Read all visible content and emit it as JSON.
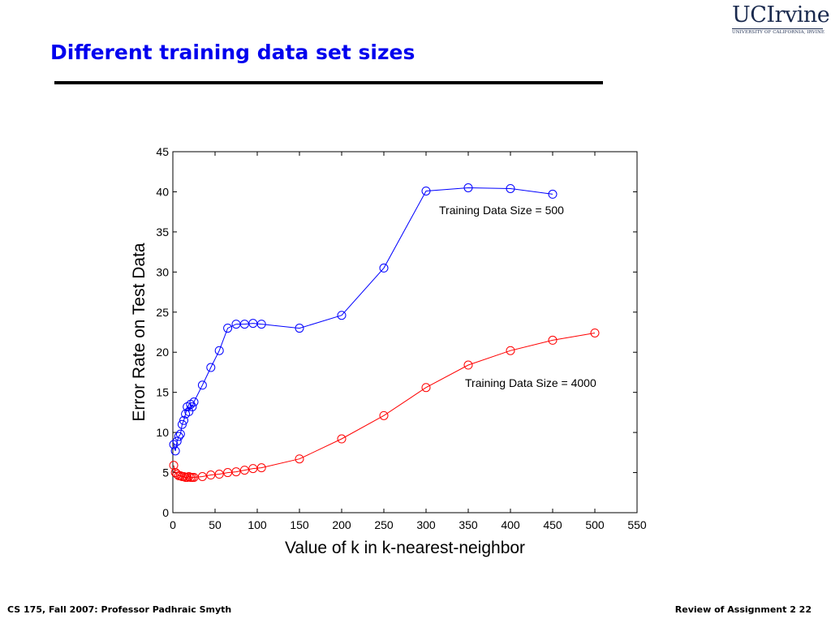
{
  "slide": {
    "title": "Different training data set sizes",
    "footer_left": "CS 175, Fall 2007: Professor Padhraic Smyth",
    "footer_right": "Review of Assignment 2 22"
  },
  "logo": {
    "main": "UCIrvine",
    "sub": "UNIVERSITY OF CALIFORNIA, IRVINE"
  },
  "chart_data": {
    "type": "line",
    "xlabel": "Value of k in k-nearest-neighbor",
    "ylabel": "Error Rate on Test Data",
    "xlim": [
      0,
      550
    ],
    "ylim": [
      0,
      45
    ],
    "xticks": [
      "0",
      "50",
      "100",
      "150",
      "200",
      "250",
      "300",
      "350",
      "400",
      "450",
      "500",
      "550"
    ],
    "yticks": [
      "0",
      "5",
      "10",
      "15",
      "20",
      "25",
      "30",
      "35",
      "40",
      "45"
    ],
    "grid": false,
    "series": [
      {
        "name": "Training Data Size = 500",
        "color": "#0000ff",
        "marker": "circle",
        "x": [
          1,
          3,
          5,
          7,
          9,
          11,
          13,
          15,
          17,
          19,
          21,
          23,
          25,
          35,
          45,
          55,
          65,
          75,
          85,
          95,
          105,
          150,
          200,
          250,
          300,
          350,
          400,
          450
        ],
        "y": [
          8.5,
          7.7,
          8.9,
          9.5,
          9.8,
          11.0,
          11.5,
          12.3,
          13.2,
          12.6,
          13.5,
          13.2,
          13.8,
          15.9,
          18.1,
          20.2,
          23.0,
          23.5,
          23.5,
          23.6,
          23.5,
          23.0,
          24.6,
          30.5,
          40.1,
          40.5,
          40.4,
          39.7
        ]
      },
      {
        "name": "Training Data Size = 4000",
        "color": "#ff0000",
        "marker": "circle",
        "x": [
          1,
          3,
          5,
          7,
          9,
          11,
          13,
          15,
          17,
          19,
          21,
          23,
          25,
          35,
          45,
          55,
          65,
          75,
          85,
          95,
          105,
          150,
          200,
          250,
          300,
          350,
          400,
          450,
          500
        ],
        "y": [
          5.9,
          5.0,
          4.8,
          4.6,
          4.6,
          4.5,
          4.5,
          4.4,
          4.4,
          4.5,
          4.4,
          4.4,
          4.4,
          4.5,
          4.7,
          4.8,
          5.0,
          5.1,
          5.3,
          5.5,
          5.6,
          6.7,
          9.2,
          12.1,
          15.6,
          18.4,
          20.2,
          21.5,
          22.4
        ]
      }
    ],
    "annotations": [
      {
        "text": "Training Data Size = 500",
        "series": 0
      },
      {
        "text": "Training Data Size = 4000",
        "series": 1
      }
    ]
  }
}
